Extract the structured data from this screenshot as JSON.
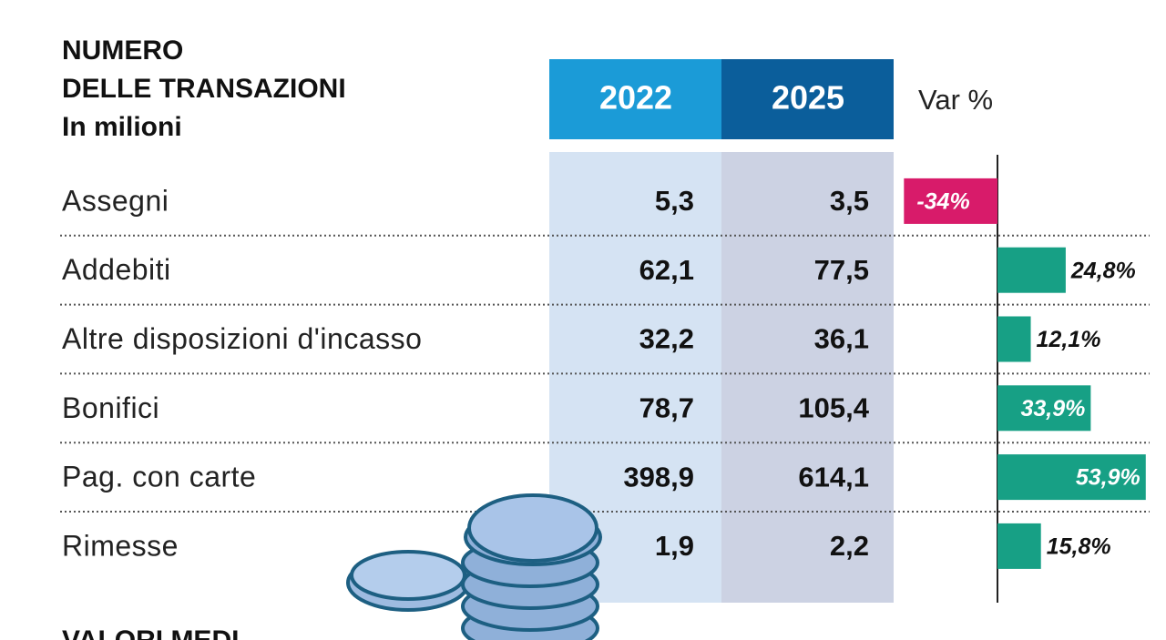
{
  "header": {
    "title_lines": [
      "NUMERO",
      "DELLE TRANSAZIONI"
    ],
    "subtitle": "In milioni",
    "next_section": "VALORI MEDI"
  },
  "table": {
    "columns": [
      "2022",
      "2025"
    ],
    "rows": [
      [
        "5,3",
        "3,5"
      ],
      [
        "62,1",
        "77,5"
      ],
      [
        "32,2",
        "36,1"
      ],
      [
        "78,7",
        "105,4"
      ],
      [
        "398,9",
        "614,1"
      ],
      [
        "1,9",
        "2,2"
      ]
    ]
  },
  "chart_data": {
    "type": "bar",
    "orientation": "horizontal",
    "title": "Var %",
    "categories": [
      "Assegni",
      "Addebiti",
      "Altre disposizioni d'incasso",
      "Bonifici",
      "Pag. con carte",
      "Rimesse"
    ],
    "values": [
      -34,
      24.8,
      12.1,
      33.9,
      53.9,
      15.8
    ],
    "value_labels": [
      "-34%",
      "24,8%",
      "12,1%",
      "33,9%",
      "53,9%",
      "15,8%"
    ],
    "colors": {
      "positive": "#17a085",
      "negative": "#d81b6a"
    }
  }
}
